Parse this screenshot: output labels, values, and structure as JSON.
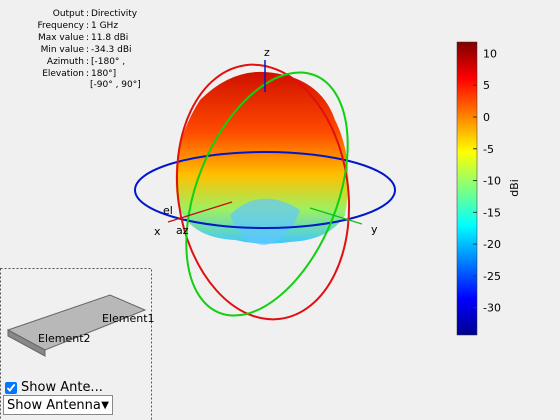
{
  "info": [
    {
      "label": "Output",
      "value": "Directivity"
    },
    {
      "label": "Frequency",
      "value": "1 GHz"
    },
    {
      "label": "Max value",
      "value": "11.8 dBi"
    },
    {
      "label": "Min value",
      "value": "-34.3 dBi"
    },
    {
      "label": "Azimuth",
      "value": "[-180° ,"
    },
    {
      "label": "Elevation",
      "value": "180°]"
    }
  ],
  "info_extra": "[-90° , 90°]",
  "axes": {
    "z": "z",
    "x": "x",
    "y": "y",
    "el": "el",
    "az": "az"
  },
  "colorbar": {
    "label": "dBi",
    "lim": [
      -34.3,
      11.8
    ],
    "ticks": [
      10,
      5,
      0,
      -5,
      -10,
      -15,
      -20,
      -25,
      -30
    ]
  },
  "antenna_panel": {
    "element1": "Element1",
    "element2": "Element2",
    "checkbox": "Show Ante...",
    "dropdown": "Show Antenna"
  }
}
